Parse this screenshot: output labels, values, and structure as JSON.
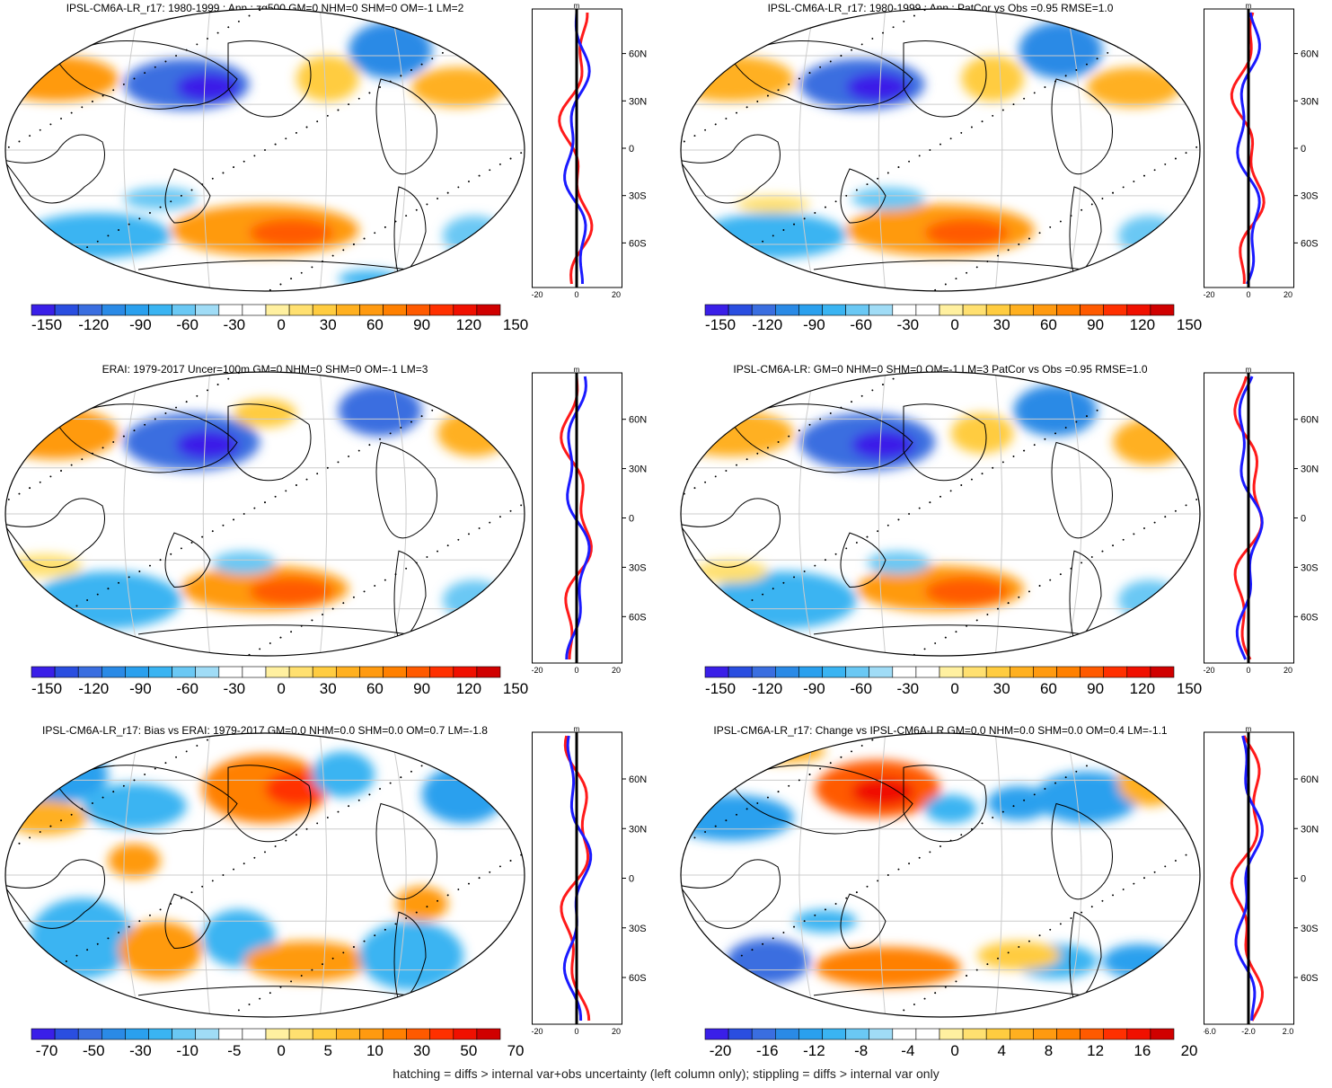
{
  "caption": "hatching = diffs > internal var+obs uncertainty (left column only); stippling = diffs > internal var only",
  "panels": [
    {
      "title": "IPSL-CM6A-LR_r17: 1980-1999 : Ann : zg500 GM=0 NHM=0 SHM=0 OM=-1 LM=2",
      "cbar_labels": [
        "-150",
        "-120",
        "-90",
        "-60",
        "-30",
        "0",
        "30",
        "60",
        "90",
        "120",
        "150"
      ],
      "side_unit": "m",
      "side_x_ticks": [
        "-20",
        "0",
        "20"
      ],
      "side_lat_ticks": [
        "60N",
        "30N",
        "0",
        "30S",
        "60S"
      ]
    },
    {
      "title": "IPSL-CM6A-LR_r17: 1980-1999 : Ann : PatCor vs Obs =0.95 RMSE=1.0",
      "cbar_labels": [
        "-150",
        "-120",
        "-90",
        "-60",
        "-30",
        "0",
        "30",
        "60",
        "90",
        "120",
        "150"
      ],
      "side_unit": "m",
      "side_x_ticks": [
        "-20",
        "0",
        "20"
      ],
      "side_lat_ticks": [
        "60N",
        "30N",
        "0",
        "30S",
        "60S"
      ]
    },
    {
      "title": "ERAI: 1979-2017 Uncer=100m GM=0 NHM=0 SHM=0 OM=-1 LM=3",
      "cbar_labels": [
        "-150",
        "-120",
        "-90",
        "-60",
        "-30",
        "0",
        "30",
        "60",
        "90",
        "120",
        "150"
      ],
      "side_unit": "m",
      "side_x_ticks": [
        "-20",
        "0",
        "20"
      ],
      "side_lat_ticks": [
        "60N",
        "30N",
        "0",
        "30S",
        "60S"
      ]
    },
    {
      "title": "IPSL-CM6A-LR: GM=0 NHM=0 SHM=0 OM=-1 LM=3 PatCor vs Obs =0.95 RMSE=1.0",
      "cbar_labels": [
        "-150",
        "-120",
        "-90",
        "-60",
        "-30",
        "0",
        "30",
        "60",
        "90",
        "120",
        "150"
      ],
      "side_unit": "m",
      "side_x_ticks": [
        "-20",
        "0",
        "20"
      ],
      "side_lat_ticks": [
        "60N",
        "30N",
        "0",
        "30S",
        "60S"
      ]
    },
    {
      "title": "IPSL-CM6A-LR_r17: Bias vs ERAI: 1979-2017 GM=0.0 NHM=0.0 SHM=0.0 OM=0.7 LM=-1.8",
      "cbar_labels": [
        "-70",
        "-50",
        "-30",
        "-10",
        "-5",
        "0",
        "5",
        "10",
        "30",
        "50",
        "70"
      ],
      "side_unit": "m",
      "side_x_ticks": [
        "-20",
        "0",
        "20"
      ],
      "side_lat_ticks": [
        "60N",
        "30N",
        "0",
        "30S",
        "60S"
      ]
    },
    {
      "title": "IPSL-CM6A-LR_r17: Change vs IPSL-CM6A-LR GM=0.0 NHM=0.0 SHM=0.0 OM=0.4 LM=-1.1",
      "cbar_labels": [
        "-20",
        "-16",
        "-12",
        "-8",
        "-4",
        "0",
        "4",
        "8",
        "12",
        "16",
        "20"
      ],
      "side_unit": "m",
      "side_x_ticks": [
        "-6.0",
        "-2.0",
        "2.0"
      ],
      "side_lat_ticks": [
        "60N",
        "30N",
        "0",
        "30S",
        "60S"
      ]
    }
  ],
  "colors": [
    "#3a1fe8",
    "#2a4ee0",
    "#3a6ee0",
    "#2a8ae6",
    "#2aa0ee",
    "#3ab4f2",
    "#6ac8f4",
    "#a0dcf6",
    "#ffffff",
    "#ffffff",
    "#fff0a0",
    "#ffe070",
    "#ffcc40",
    "#ffb020",
    "#ff9a10",
    "#ff8000",
    "#ff5a00",
    "#ff3000",
    "#f01000",
    "#d00000"
  ],
  "chart_data": [
    {
      "type": "map",
      "title": "IPSL-CM6A-LR_r17: 1980-1999 : Ann : zg500 GM=0 NHM=0 SHM=0 OM=-1 LM=2",
      "colorbar": [
        -150,
        -120,
        -90,
        -60,
        -30,
        0,
        30,
        60,
        90,
        120,
        150
      ],
      "side_xlim": [
        -20,
        20
      ],
      "side_unit": "m"
    },
    {
      "type": "map",
      "title": "IPSL-CM6A-LR_r17: 1980-1999 : Ann : PatCor vs Obs =0.95 RMSE=1.0",
      "colorbar": [
        -150,
        -120,
        -90,
        -60,
        -30,
        0,
        30,
        60,
        90,
        120,
        150
      ],
      "side_xlim": [
        -20,
        20
      ],
      "side_unit": "m"
    },
    {
      "type": "map",
      "title": "ERAI: 1979-2017 Uncer=100m GM=0 NHM=0 SHM=0 OM=-1 LM=3",
      "colorbar": [
        -150,
        -120,
        -90,
        -60,
        -30,
        0,
        30,
        60,
        90,
        120,
        150
      ],
      "side_xlim": [
        -20,
        20
      ],
      "side_unit": "m"
    },
    {
      "type": "map",
      "title": "IPSL-CM6A-LR: GM=0 NHM=0 SHM=0 OM=-1 LM=3 PatCor vs Obs =0.95 RMSE=1.0",
      "colorbar": [
        -150,
        -120,
        -90,
        -60,
        -30,
        0,
        30,
        60,
        90,
        120,
        150
      ],
      "side_xlim": [
        -20,
        20
      ],
      "side_unit": "m"
    },
    {
      "type": "map",
      "title": "IPSL-CM6A-LR_r17: Bias vs ERAI: 1979-2017 GM=0.0 NHM=0.0 SHM=0.0 OM=0.7 LM=-1.8",
      "colorbar": [
        -70,
        -50,
        -30,
        -10,
        -5,
        0,
        5,
        10,
        30,
        50,
        70
      ],
      "side_xlim": [
        -20,
        20
      ],
      "side_unit": "m"
    },
    {
      "type": "map",
      "title": "IPSL-CM6A-LR_r17: Change vs IPSL-CM6A-LR GM=0.0 NHM=0.0 SHM=0.0 OM=0.4 LM=-1.1",
      "colorbar": [
        -20,
        -16,
        -12,
        -8,
        -4,
        0,
        4,
        8,
        12,
        16,
        20
      ],
      "side_xlim": [
        -8,
        6
      ],
      "side_unit": "m"
    }
  ]
}
